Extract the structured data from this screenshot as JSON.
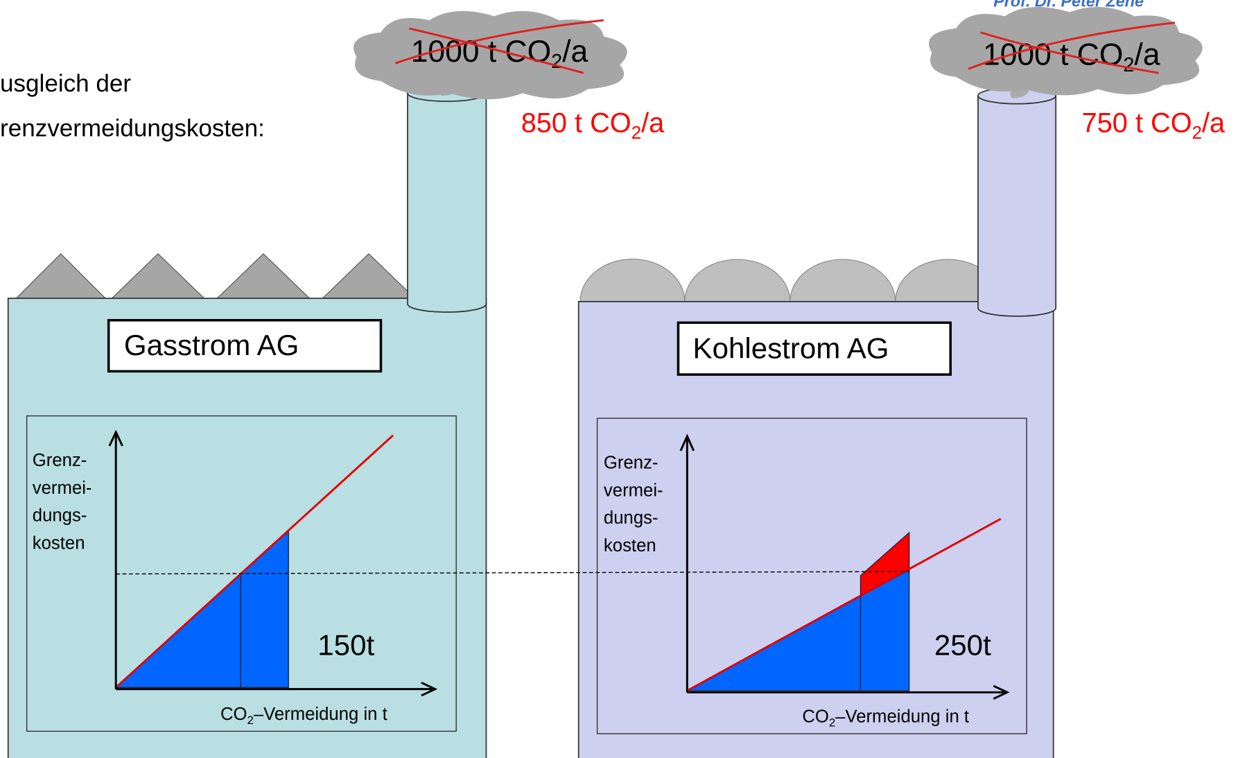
{
  "header": {
    "author": "Prof. Dr. Peter Zene"
  },
  "intro": {
    "line1": "usgleich der",
    "line2": "renzvermeidungskosten:"
  },
  "plants": [
    {
      "name": "Gasstrom  AG",
      "old_emission": {
        "main": "1000 t CO",
        "sub": "2",
        "tail": "/a"
      },
      "new_emission": {
        "main": "850 t CO",
        "sub": "2",
        "tail": "/a"
      },
      "y_label": [
        "Grenz-",
        "vermei-",
        "dungs-",
        "kosten"
      ],
      "x_label": {
        "main": "CO",
        "sub": "2",
        "tail": "–Vermeidung in t"
      },
      "amount": "150t"
    },
    {
      "name": "Kohlestrom  AG",
      "old_emission": {
        "main": "1000 t CO",
        "sub": "2",
        "tail": "/a"
      },
      "new_emission": {
        "main": "750 t CO",
        "sub": "2",
        "tail": "/a"
      },
      "y_label": [
        "Grenz-",
        "vermei-",
        "dungs-",
        "kosten"
      ],
      "x_label": {
        "main": "CO",
        "sub": "2",
        "tail": "–Vermeidung in t"
      },
      "amount": "250t"
    }
  ]
}
